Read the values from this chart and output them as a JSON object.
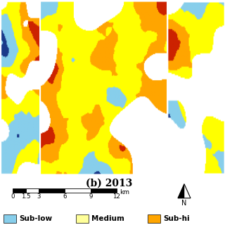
{
  "title": "(b) 2013",
  "title_fontsize": 10,
  "title_fontweight": "bold",
  "background_color": "#ffffff",
  "legend_items": [
    {
      "label": "Sub-low",
      "color": "#87CEEB"
    },
    {
      "label": "Medium",
      "color": "#FFFF99"
    },
    {
      "label": "Sub-hi",
      "color": "#FFA500"
    }
  ],
  "scale_bar": {
    "ticks": [
      0,
      1.5,
      3,
      6,
      9,
      12
    ],
    "unit": "km"
  },
  "map_colors": {
    "sub_low": "#87CEEB",
    "medium": "#FFFF00",
    "sub_high": "#FFA500",
    "high": "#CC2200",
    "very_low": "#1A3A8A"
  }
}
